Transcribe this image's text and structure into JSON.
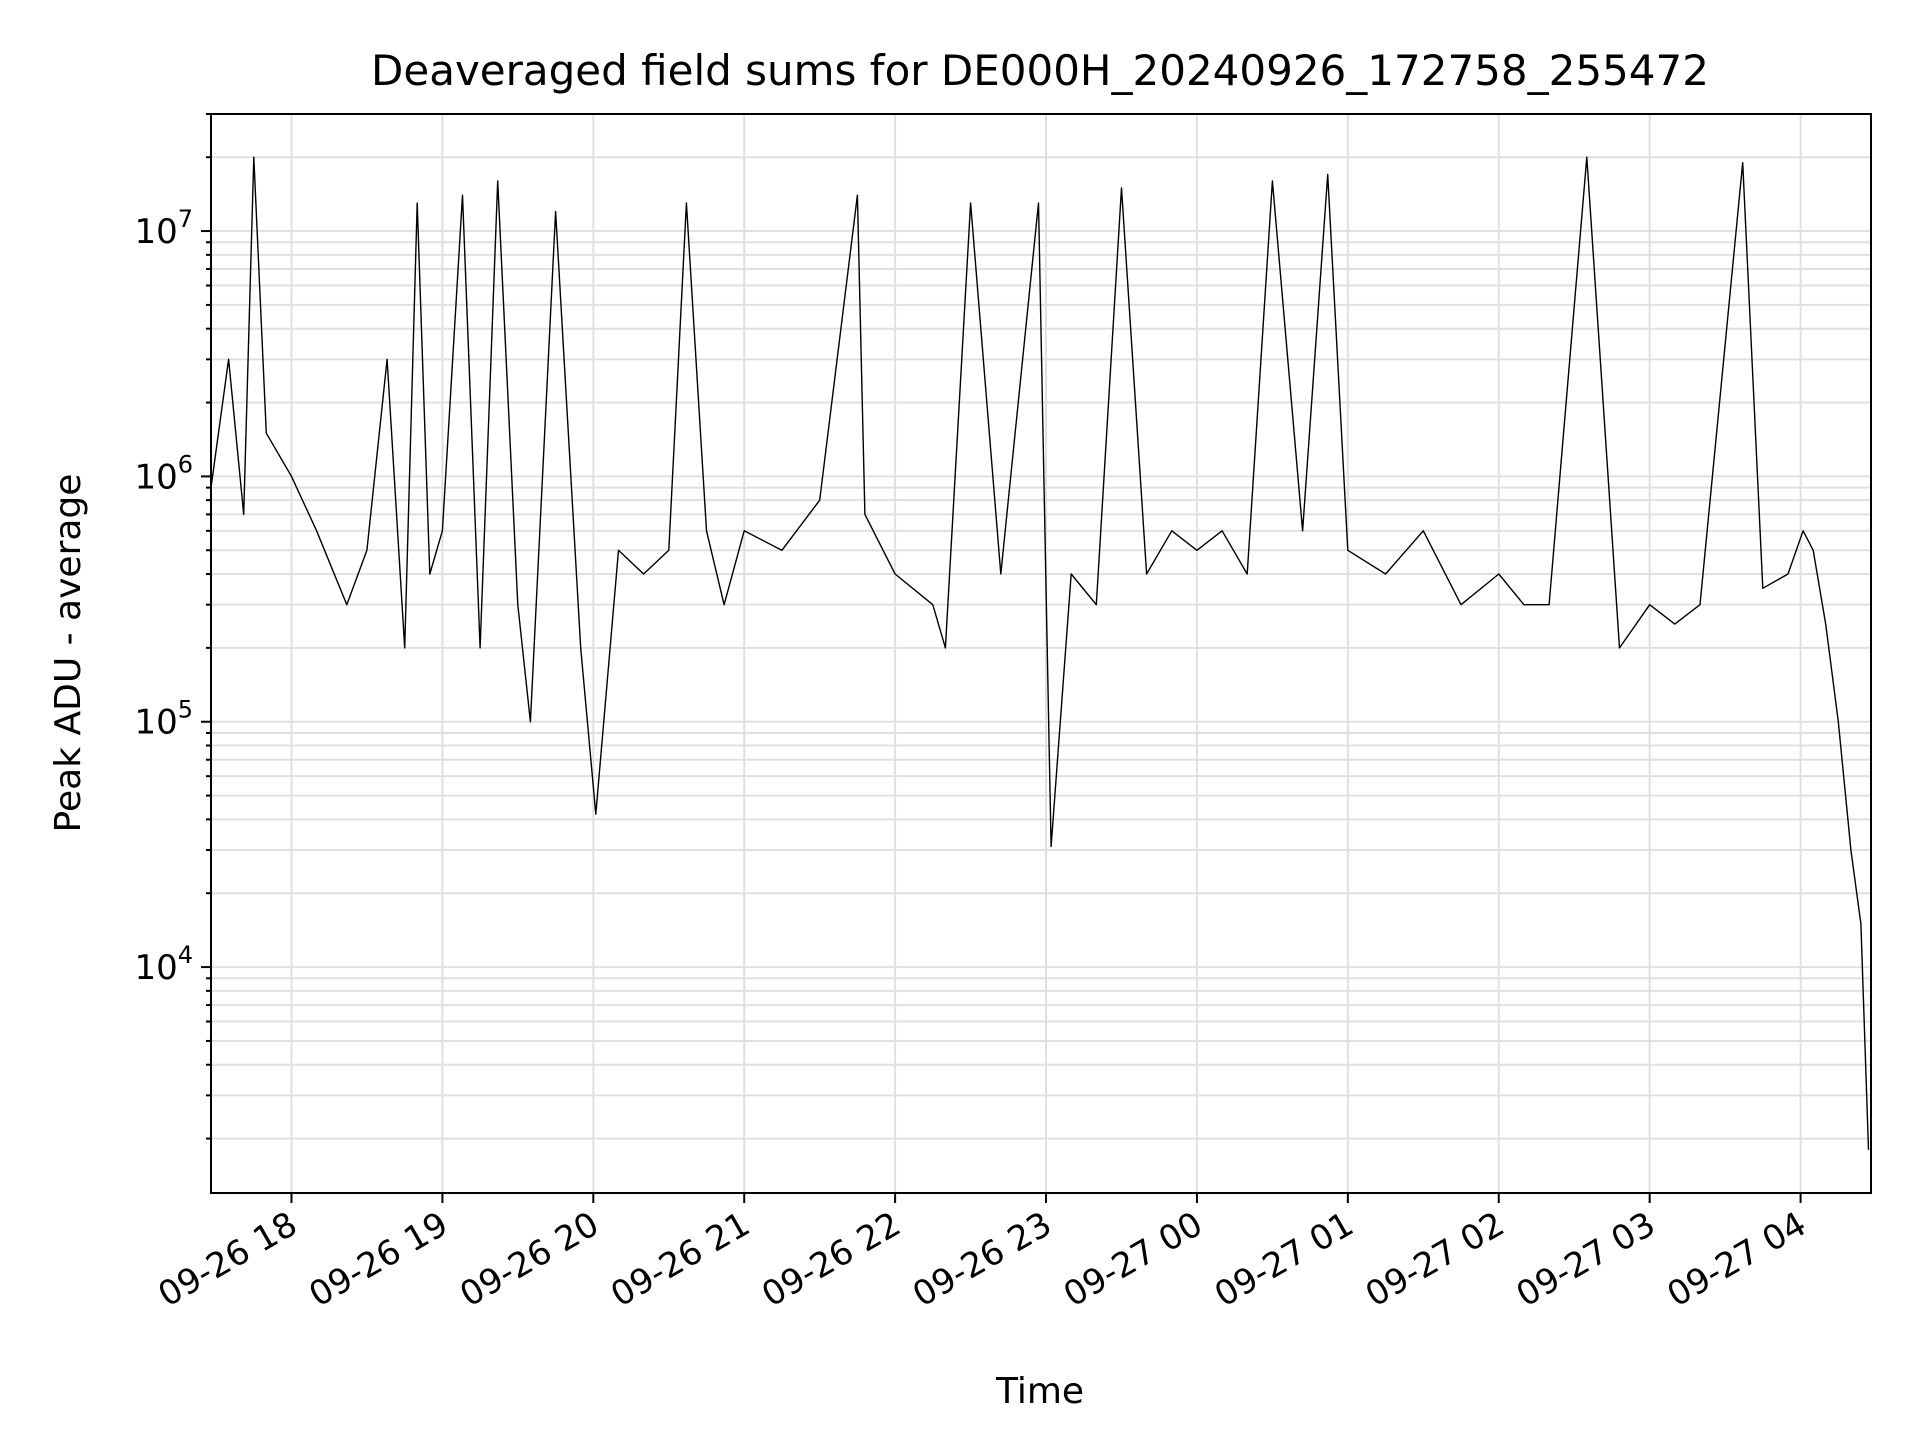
{
  "chart_data": {
    "type": "line",
    "title": "Deaveraged field sums for DE000H_20240926_172758_255472",
    "xlabel": "Time",
    "ylabel": "Peak ADU - average",
    "yscale": "log",
    "ylim": [
      1200,
      30000000
    ],
    "xlim": [
      "2024-09-26 17:28",
      "2024-09-27 04:28"
    ],
    "grid": true,
    "line_color": "#000000",
    "x_tick_labels": [
      "09-26 18",
      "09-26 19",
      "09-26 20",
      "09-26 21",
      "09-26 22",
      "09-26 23",
      "09-27 00",
      "09-27 01",
      "09-27 02",
      "09-27 03",
      "09-27 04"
    ],
    "x_ticks": [
      "2024-09-26 18:00",
      "2024-09-26 19:00",
      "2024-09-26 20:00",
      "2024-09-26 21:00",
      "2024-09-26 22:00",
      "2024-09-26 23:00",
      "2024-09-27 00:00",
      "2024-09-27 01:00",
      "2024-09-27 02:00",
      "2024-09-27 03:00",
      "2024-09-27 04:00"
    ],
    "y_ticks": [
      10000,
      100000,
      1000000,
      10000000
    ],
    "y_tick_labels": [
      {
        "base": "10",
        "exp": "4"
      },
      {
        "base": "10",
        "exp": "5"
      },
      {
        "base": "10",
        "exp": "6"
      },
      {
        "base": "10",
        "exp": "7"
      }
    ],
    "series": [
      {
        "x": [
          "2024-09-26 17:28",
          "2024-09-26 17:35",
          "2024-09-26 17:41",
          "2024-09-26 17:45",
          "2024-09-26 17:50",
          "2024-09-26 18:00",
          "2024-09-26 18:10",
          "2024-09-26 18:22",
          "2024-09-26 18:30",
          "2024-09-26 18:38",
          "2024-09-26 18:45",
          "2024-09-26 18:50",
          "2024-09-26 18:55",
          "2024-09-26 19:00",
          "2024-09-26 19:08",
          "2024-09-26 19:15",
          "2024-09-26 19:22",
          "2024-09-26 19:30",
          "2024-09-26 19:35",
          "2024-09-26 19:45",
          "2024-09-26 19:55",
          "2024-09-26 20:01",
          "2024-09-26 20:10",
          "2024-09-26 20:20",
          "2024-09-26 20:30",
          "2024-09-26 20:37",
          "2024-09-26 20:45",
          "2024-09-26 20:52",
          "2024-09-26 21:00",
          "2024-09-26 21:15",
          "2024-09-26 21:30",
          "2024-09-26 21:45",
          "2024-09-26 21:48",
          "2024-09-26 22:00",
          "2024-09-26 22:15",
          "2024-09-26 22:20",
          "2024-09-26 22:30",
          "2024-09-26 22:42",
          "2024-09-26 22:57",
          "2024-09-26 23:02",
          "2024-09-26 23:10",
          "2024-09-26 23:20",
          "2024-09-26 23:30",
          "2024-09-26 23:40",
          "2024-09-26 23:50",
          "2024-09-27 00:00",
          "2024-09-27 00:10",
          "2024-09-27 00:20",
          "2024-09-27 00:30",
          "2024-09-27 00:42",
          "2024-09-27 00:52",
          "2024-09-27 01:00",
          "2024-09-27 01:15",
          "2024-09-27 01:30",
          "2024-09-27 01:45",
          "2024-09-27 02:00",
          "2024-09-27 02:10",
          "2024-09-27 02:20",
          "2024-09-27 02:35",
          "2024-09-27 02:48",
          "2024-09-27 03:00",
          "2024-09-27 03:10",
          "2024-09-27 03:20",
          "2024-09-27 03:37",
          "2024-09-27 03:45",
          "2024-09-27 03:55",
          "2024-09-27 04:01",
          "2024-09-27 04:05",
          "2024-09-27 04:10",
          "2024-09-27 04:15",
          "2024-09-27 04:20",
          "2024-09-27 04:24",
          "2024-09-27 04:27"
        ],
        "y": [
          900000,
          3000000,
          700000,
          20000000,
          1500000,
          1000000,
          600000,
          300000,
          500000,
          3000000,
          200000,
          13000000,
          400000,
          600000,
          14000000,
          200000,
          16000000,
          300000,
          100000,
          12000000,
          200000,
          42000,
          500000,
          400000,
          500000,
          13000000,
          600000,
          300000,
          600000,
          500000,
          800000,
          14000000,
          700000,
          400000,
          300000,
          200000,
          13000000,
          400000,
          13000000,
          31000,
          400000,
          300000,
          15000000,
          400000,
          600000,
          500000,
          600000,
          400000,
          16000000,
          600000,
          17000000,
          500000,
          400000,
          600000,
          300000,
          400000,
          300000,
          300000,
          20000000,
          200000,
          300000,
          250000,
          300000,
          19000000,
          350000,
          400000,
          600000,
          500000,
          250000,
          100000,
          30000,
          15000,
          1800
        ]
      }
    ]
  }
}
